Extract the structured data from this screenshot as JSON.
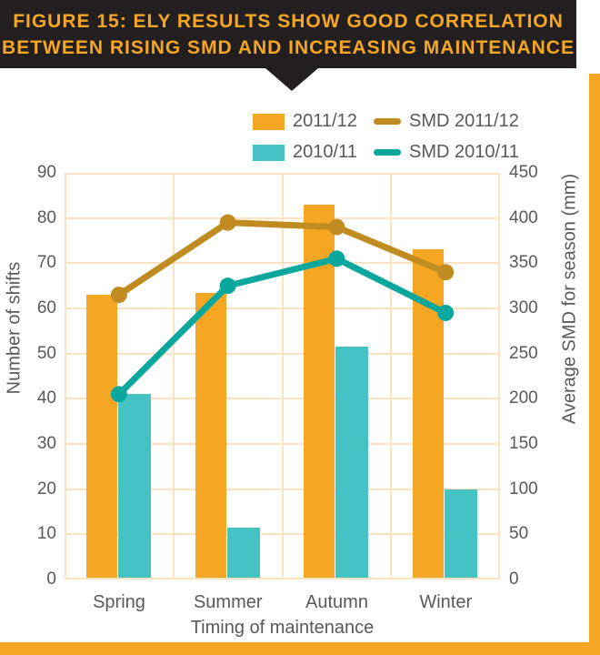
{
  "header": {
    "line1": "FIGURE 15: ELY RESULTS SHOW GOOD CORRELATION",
    "line2": "BETWEEN RISING SMD AND INCREASING MAINTENANCE"
  },
  "colors": {
    "header_bg": "#231F20",
    "accent_orange": "#F5A623",
    "grid": "#FBE3C1",
    "text": "#58595B"
  },
  "chart_data": {
    "type": "bar",
    "subtype": "grouped bars with overlaid lines (dual axis)",
    "categories": [
      "Spring",
      "Summer",
      "Autumn",
      "Winter"
    ],
    "bar_series": [
      {
        "name": "2011/12",
        "color": "#F5A623",
        "axis": "left",
        "values": [
          63,
          63.5,
          83,
          73
        ]
      },
      {
        "name": "2010/11",
        "color": "#45C2C4",
        "axis": "left",
        "values": [
          41,
          11.5,
          51.5,
          20
        ]
      }
    ],
    "line_series": [
      {
        "name": "SMD 2011/12",
        "color": "#C08B20",
        "axis": "right",
        "values": [
          315,
          395,
          390,
          340
        ]
      },
      {
        "name": "SMD 2010/11",
        "color": "#0AA79C",
        "axis": "right",
        "values": [
          205,
          325,
          355,
          295
        ]
      }
    ],
    "left_axis": {
      "label": "Number of shifts",
      "min": 0,
      "max": 90,
      "step": 10
    },
    "right_axis": {
      "label": "Average SMD for season (mm)",
      "min": 0,
      "max": 450,
      "step": 50
    },
    "xlabel": "Timing of maintenance",
    "grid": true,
    "legend_position": "top-right"
  }
}
